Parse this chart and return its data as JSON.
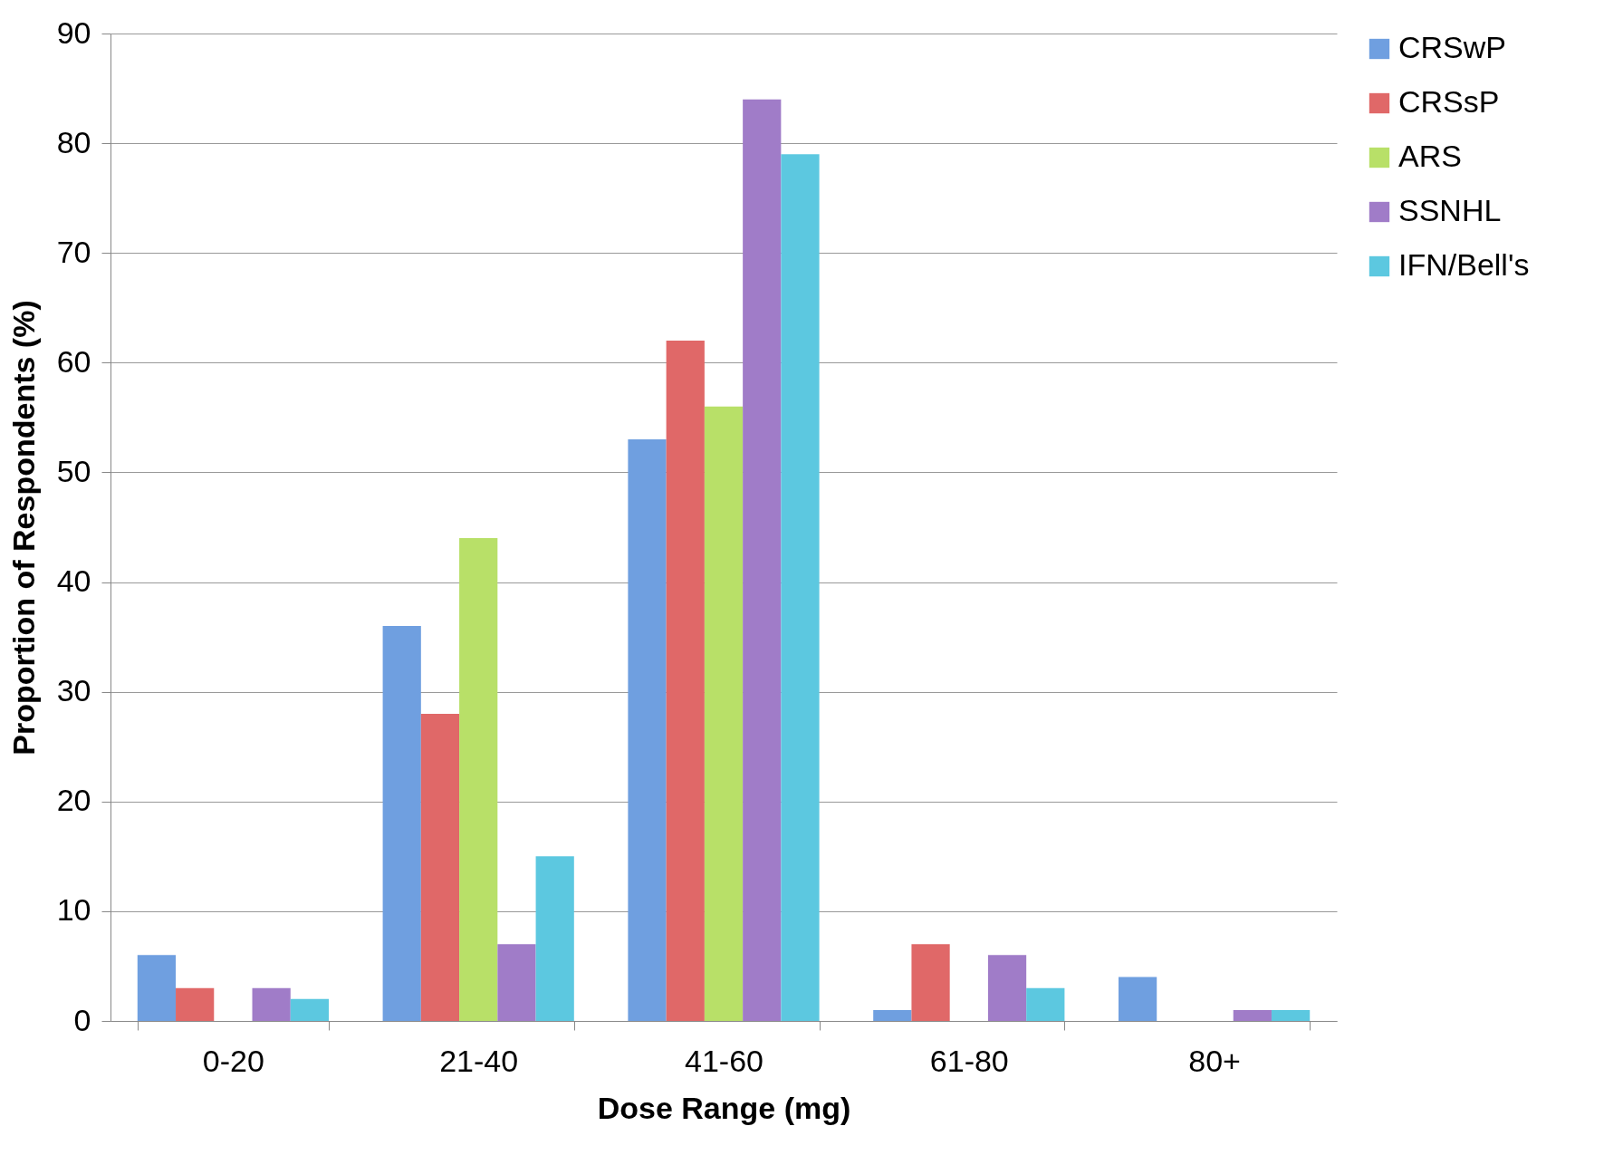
{
  "chart_data": {
    "type": "bar",
    "xlabel": "Dose Range (mg)",
    "ylabel": "Proportion of Respondents (%)",
    "categories": [
      "0-20",
      "21-40",
      "41-60",
      "61-80",
      "80+"
    ],
    "series": [
      {
        "name": "CRSwP",
        "color": "#6f9fe0",
        "values": [
          6,
          36,
          53,
          1,
          4
        ]
      },
      {
        "name": "CRSsP",
        "color": "#e06868",
        "values": [
          3,
          28,
          62,
          7,
          0
        ]
      },
      {
        "name": "ARS",
        "color": "#b8e068",
        "values": [
          0,
          44,
          56,
          0,
          0
        ]
      },
      {
        "name": "SSNHL",
        "color": "#a07cc8",
        "values": [
          3,
          7,
          84,
          6,
          1
        ]
      },
      {
        "name": "IFN/Bell's",
        "color": "#5cc8e0",
        "values": [
          2,
          15,
          79,
          3,
          1
        ]
      }
    ],
    "ylim": [
      0,
      90
    ],
    "yticks": [
      0,
      10,
      20,
      30,
      40,
      50,
      60,
      70,
      80,
      90
    ],
    "grid": "y",
    "legend": "right"
  }
}
